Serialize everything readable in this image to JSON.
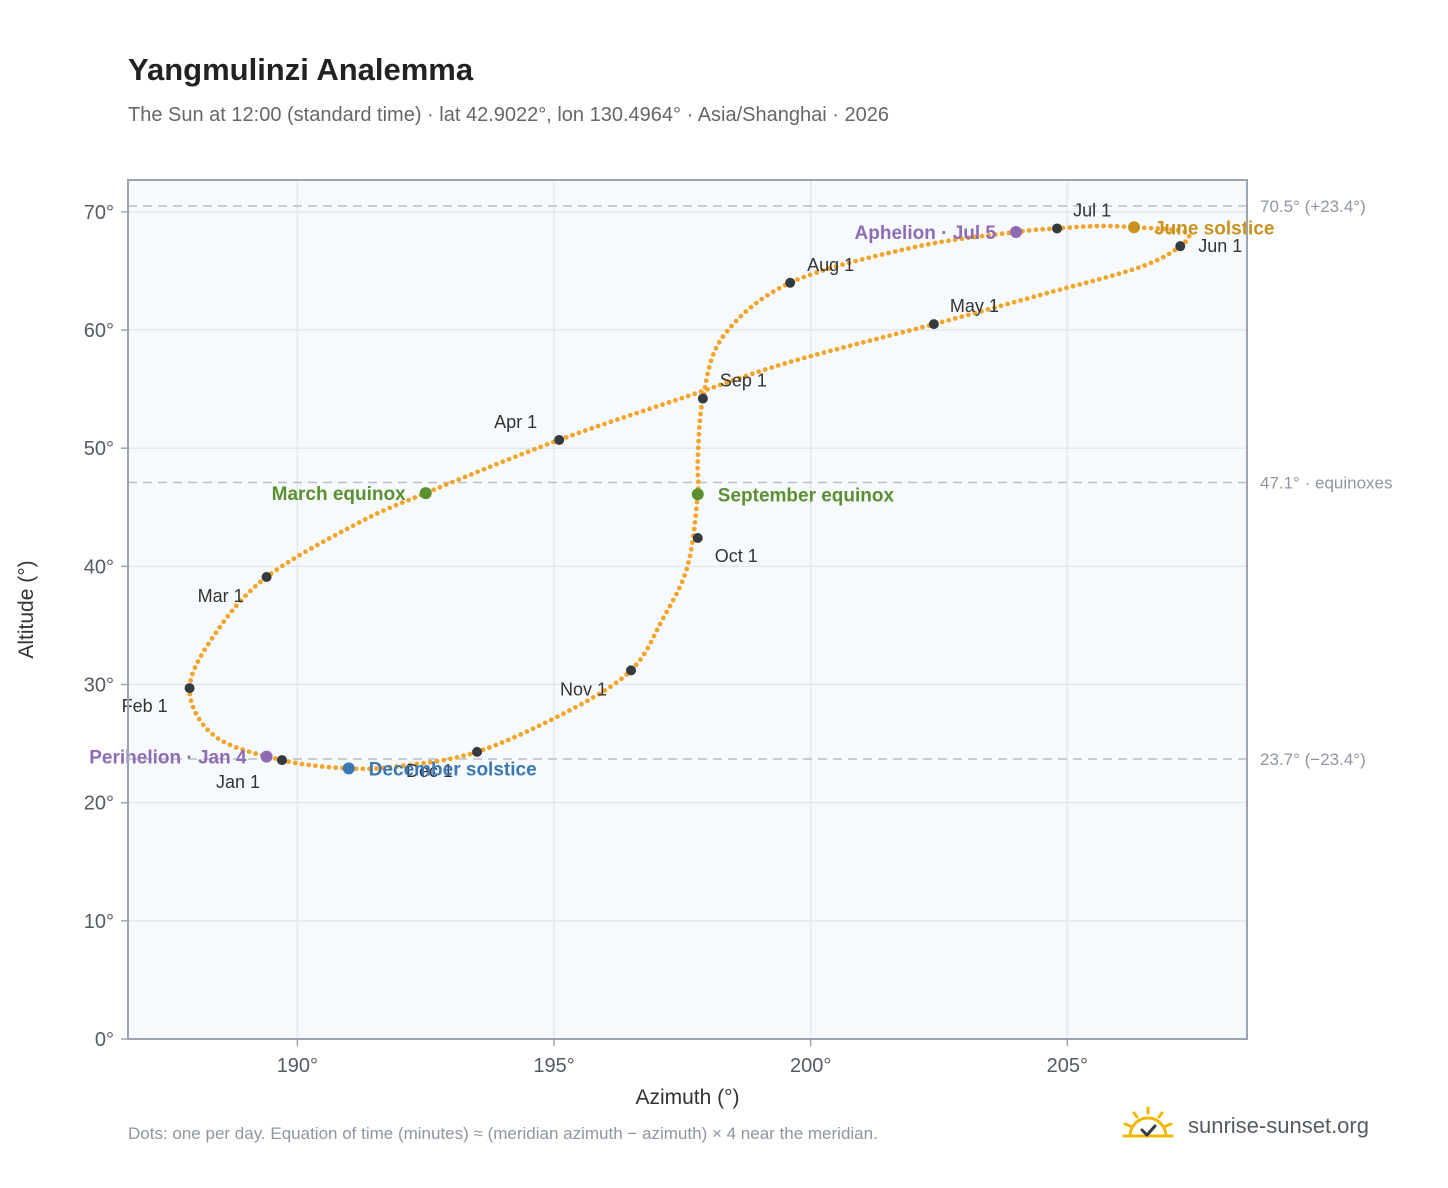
{
  "header": {
    "title": "Yangmulinzi Analemma",
    "subtitle": "The Sun at 12:00 (standard time) · lat 42.9022°, lon 130.4964° · Asia/Shanghai · 2026"
  },
  "footer": {
    "note": "Dots: one per day. Equation of time (minutes) ≈ (meridian azimuth − azimuth) × 4 near the meridian.",
    "brand": "sunrise-sunset.org",
    "brand_icon": "sun-logo-icon"
  },
  "colors": {
    "curve": "#f2a52a",
    "month_dot": "#343a40",
    "equinox": "#5a8f32",
    "june_solstice": "#c9911e",
    "december_solstice": "#3a78b5",
    "aphelion_perihelion": "#8e6bb5",
    "reference_line": "#b8bec6",
    "plot_background": "#f7fafc",
    "grid": "#e2e8ef",
    "frame": "#9aa5b1"
  },
  "chart_data": {
    "type": "scatter",
    "xlabel": "Azimuth (°)",
    "ylabel": "Altitude (°)",
    "xlim": [
      186.7,
      208.5
    ],
    "ylim": [
      0,
      72.7
    ],
    "xticks": [
      190,
      195,
      200,
      205
    ],
    "xtick_labels": [
      "190°",
      "195°",
      "200°",
      "205°"
    ],
    "yticks": [
      0,
      10,
      20,
      30,
      40,
      50,
      60,
      70
    ],
    "ytick_labels": [
      "0°",
      "10°",
      "20°",
      "30°",
      "40°",
      "50°",
      "60°",
      "70°"
    ],
    "grid": true,
    "reference_lines": [
      {
        "y": 70.5,
        "label": "70.5° (+23.4°)"
      },
      {
        "y": 47.1,
        "label": "47.1° · equinoxes"
      },
      {
        "y": 23.7,
        "label": "23.7° (−23.4°)"
      }
    ],
    "series": [
      {
        "points": [
          [
            189.7,
            23.6
          ],
          [
            188.4,
            25.6
          ],
          [
            187.9,
            29.6
          ],
          [
            188.4,
            34.3
          ],
          [
            189.4,
            39.1
          ],
          [
            191.2,
            43.7
          ],
          [
            192.5,
            46.2
          ],
          [
            195.1,
            50.7
          ],
          [
            197.6,
            54.4
          ],
          [
            199.6,
            57.3
          ],
          [
            202.4,
            60.5
          ],
          [
            204.5,
            63.0
          ],
          [
            206.4,
            65.3
          ],
          [
            207.2,
            67.1
          ],
          [
            207.3,
            68.3
          ],
          [
            206.3,
            68.7
          ],
          [
            205.6,
            68.8
          ],
          [
            204.8,
            68.6
          ],
          [
            204.0,
            68.3
          ],
          [
            202.0,
            67.0
          ],
          [
            199.6,
            64.0
          ],
          [
            198.3,
            59.5
          ],
          [
            197.9,
            54.2
          ],
          [
            197.8,
            48.9
          ],
          [
            197.8,
            46.1
          ],
          [
            197.6,
            40.0
          ],
          [
            197.1,
            35.4
          ],
          [
            196.5,
            31.2
          ],
          [
            195.3,
            27.8
          ],
          [
            193.5,
            24.3
          ],
          [
            192.0,
            23.1
          ],
          [
            191.0,
            22.9
          ],
          [
            189.7,
            23.6
          ]
        ]
      }
    ],
    "month_markers": [
      {
        "label": "Jan 1",
        "x": 189.7,
        "y": 23.6
      },
      {
        "label": "Feb 1",
        "x": 187.9,
        "y": 29.7
      },
      {
        "label": "Mar 1",
        "x": 189.4,
        "y": 39.1
      },
      {
        "label": "Apr 1",
        "x": 195.1,
        "y": 50.7
      },
      {
        "label": "May 1",
        "x": 202.4,
        "y": 60.5
      },
      {
        "label": "Jun 1",
        "x": 207.2,
        "y": 67.1
      },
      {
        "label": "Jul 1",
        "x": 204.8,
        "y": 68.6
      },
      {
        "label": "Aug 1",
        "x": 199.6,
        "y": 64.0
      },
      {
        "label": "Sep 1",
        "x": 197.9,
        "y": 54.2
      },
      {
        "label": "Oct 1",
        "x": 197.8,
        "y": 42.4
      },
      {
        "label": "Nov 1",
        "x": 196.5,
        "y": 31.2
      },
      {
        "label": "Dec 1",
        "x": 193.5,
        "y": 24.3
      }
    ],
    "events": [
      {
        "label": "March equinox",
        "x": 192.5,
        "y": 46.2,
        "kind": "equinox"
      },
      {
        "label": "September equinox",
        "x": 197.8,
        "y": 46.1,
        "kind": "equinox"
      },
      {
        "label": "June solstice",
        "x": 206.3,
        "y": 68.7,
        "kind": "june_solstice"
      },
      {
        "label": "December solstice",
        "x": 191.0,
        "y": 22.9,
        "kind": "december_solstice"
      },
      {
        "label": "Aphelion · Jul 5",
        "x": 204.0,
        "y": 68.3,
        "kind": "aphelion_perihelion"
      },
      {
        "label": "Perihelion · Jan 4",
        "x": 189.4,
        "y": 23.9,
        "kind": "aphelion_perihelion"
      }
    ]
  }
}
